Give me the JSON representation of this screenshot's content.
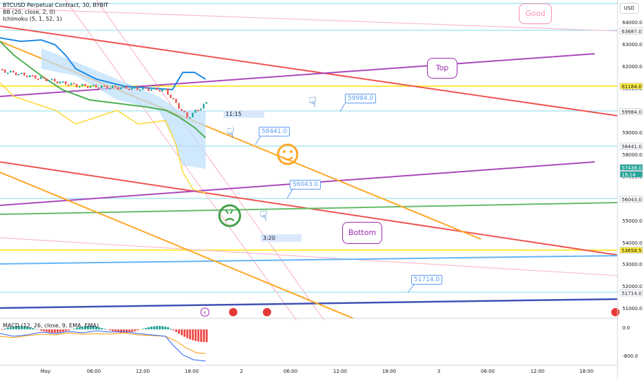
{
  "legend": {
    "symbol": "BTCUSD Perpetual Contract, 30, BYBIT",
    "bb": "BB (20, close, 2, 0)",
    "ichimoku": "Ichimoku (5, 1, 52, 1)",
    "macd": "MACD (12, 26, close, 9, EMA, EMA)"
  },
  "axis": {
    "currency": "USD",
    "price_labels": [
      "64000.0",
      "63000.0",
      "62000.0",
      "61000.0",
      "60000.0",
      "59000.0",
      "58000.0",
      "57000.0",
      "56000.0",
      "55000.0",
      "54000.0",
      "53000.0",
      "52000.0",
      "51000.0"
    ],
    "price_tags": [
      {
        "text": "63687.0",
        "bg": "#ffffff",
        "fg": "#131722"
      },
      {
        "text": "61184.0",
        "bg": "#ffeb3b",
        "fg": "#131722"
      },
      {
        "text": "59984.0",
        "bg": "#ffffff",
        "fg": "#131722"
      },
      {
        "text": "58441.0",
        "bg": "#ffffff",
        "fg": "#131722"
      },
      {
        "text": "57438.0",
        "bg": "#26a69a",
        "fg": "#ffffff"
      },
      {
        "text": "19:14",
        "bg": "#26a69a",
        "fg": "#ffffff"
      },
      {
        "text": "56043.0",
        "bg": "#ffffff",
        "fg": "#131722"
      },
      {
        "text": "53658.5",
        "bg": "#ffeb3b",
        "fg": "#131722"
      },
      {
        "text": "51714.0",
        "bg": "#ffffff",
        "fg": "#131722"
      }
    ],
    "macd_labels": [
      "0.0",
      "-800.0"
    ],
    "time_labels": [
      "May",
      "06:00",
      "12:00",
      "18:00",
      "2",
      "06:00",
      "12:00",
      "18:00",
      "3",
      "06:00",
      "12:00",
      "18:00"
    ]
  },
  "callouts": [
    "59984.0",
    "58441.0",
    "56043.0",
    "51714.0"
  ],
  "bubbles": {
    "good": "Good",
    "top": "Top",
    "bottom": "Bottom"
  },
  "durations": [
    "11:15",
    "3:20"
  ],
  "colors": {
    "up": "#26a69a",
    "down": "#ef5350"
  }
}
